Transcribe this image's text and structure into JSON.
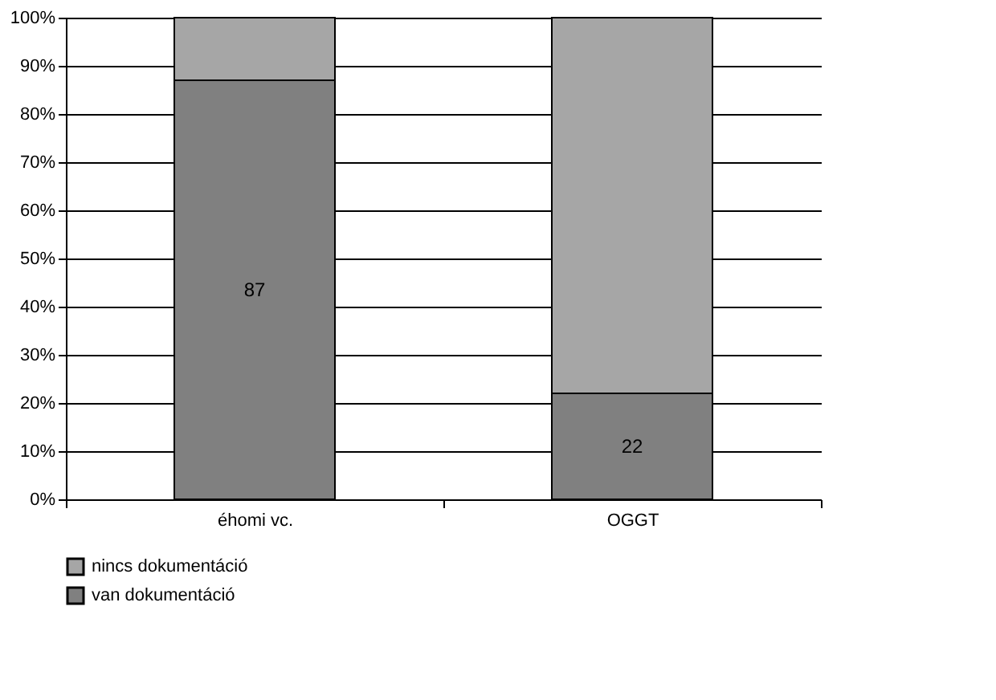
{
  "chart_data": {
    "type": "bar",
    "stacked": true,
    "categories": [
      "éhomi vc.",
      "OGGT"
    ],
    "series": [
      {
        "name": "van dokumentáció",
        "color": "#808080",
        "values": [
          87,
          22
        ],
        "value_labels": [
          "87",
          "22"
        ]
      },
      {
        "name": "nincs dokumentáció",
        "color": "#a6a6a6",
        "values": [
          13,
          78
        ]
      }
    ],
    "ylim": [
      0,
      100
    ],
    "yticks": [
      {
        "value": 0,
        "label": "0%"
      },
      {
        "value": 10,
        "label": "10%"
      },
      {
        "value": 20,
        "label": "20%"
      },
      {
        "value": 30,
        "label": "30%"
      },
      {
        "value": 40,
        "label": "40%"
      },
      {
        "value": 50,
        "label": "50%"
      },
      {
        "value": 60,
        "label": "60%"
      },
      {
        "value": 70,
        "label": "70%"
      },
      {
        "value": 80,
        "label": "80%"
      },
      {
        "value": 90,
        "label": "90%"
      },
      {
        "value": 100,
        "label": "100%"
      }
    ],
    "grid": "y",
    "legend": "bottom"
  }
}
